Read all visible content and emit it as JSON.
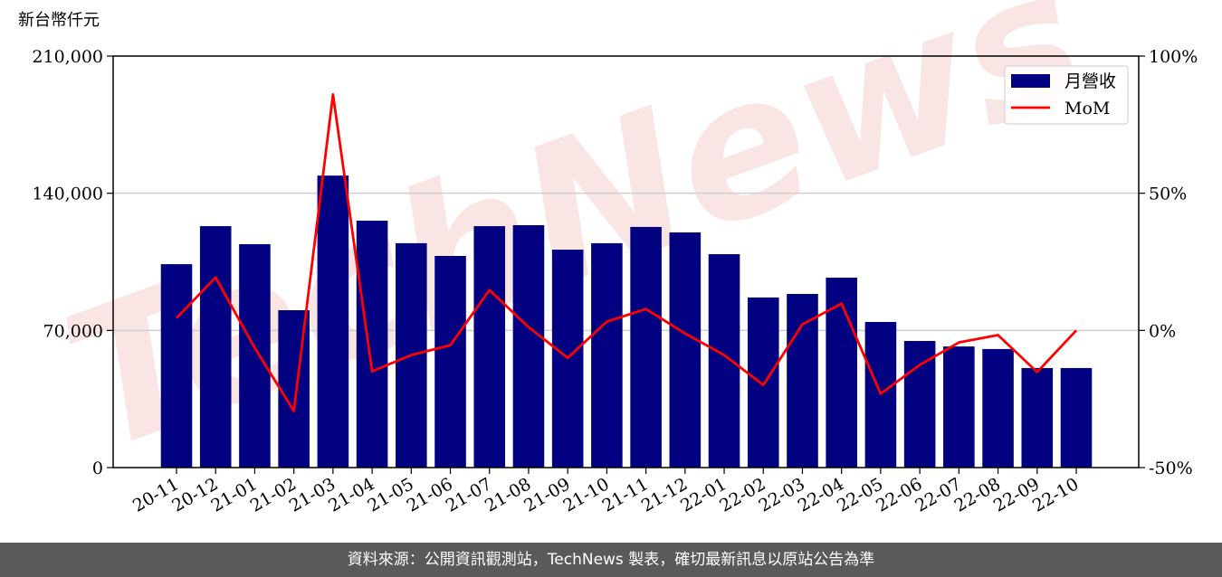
{
  "chart_data": {
    "type": "bar+line",
    "y_label": "新台幣仟元",
    "watermark": "TechNews",
    "source": "資料來源：公開資訊觀測站，TechNews 製表，確切最新訊息以原站公告為準",
    "categories": [
      "20-11",
      "20-12",
      "21-01",
      "21-02",
      "21-03",
      "21-04",
      "21-05",
      "21-06",
      "21-07",
      "21-08",
      "21-09",
      "21-10",
      "21-11",
      "21-12",
      "22-01",
      "22-02",
      "22-03",
      "22-04",
      "22-05",
      "22-06",
      "22-07",
      "22-08",
      "22-09",
      "22-10"
    ],
    "series": [
      {
        "name": "月營收",
        "type": "bar",
        "color": "#000080",
        "axis": "y",
        "values": [
          103800,
          123200,
          114000,
          80300,
          149000,
          126000,
          114500,
          108000,
          123200,
          123700,
          111200,
          114500,
          122800,
          120000,
          108900,
          86800,
          88600,
          96900,
          74300,
          64600,
          61800,
          60500,
          50800,
          50800
        ]
      },
      {
        "name": "MoM",
        "type": "line",
        "color": "#ff0000",
        "axis": "y2",
        "values": [
          4.5,
          19.3,
          -6.4,
          -29.4,
          86,
          -14.9,
          -9,
          -5.4,
          14.7,
          1.2,
          -10,
          3.2,
          7.8,
          -1.1,
          -9,
          -19.9,
          2.2,
          9.8,
          -23.1,
          -12.6,
          -4.4,
          -1.7,
          -15.2,
          0
        ]
      }
    ],
    "ylim": [
      0,
      210000
    ],
    "yticks": [
      0,
      {
        "value": 70000,
        "label": "70,000"
      },
      {
        "value": 140000,
        "label": "140,000"
      },
      {
        "value": 210000,
        "label": "210,000"
      }
    ],
    "y2lim": [
      -50,
      100
    ],
    "y2ticks": [
      {
        "value": -50,
        "label": "-50%"
      },
      {
        "value": 0,
        "label": "0%"
      },
      {
        "value": 50,
        "label": "50%"
      },
      {
        "value": 100,
        "label": "100%"
      }
    ],
    "grid": true,
    "legend": "upper right"
  }
}
